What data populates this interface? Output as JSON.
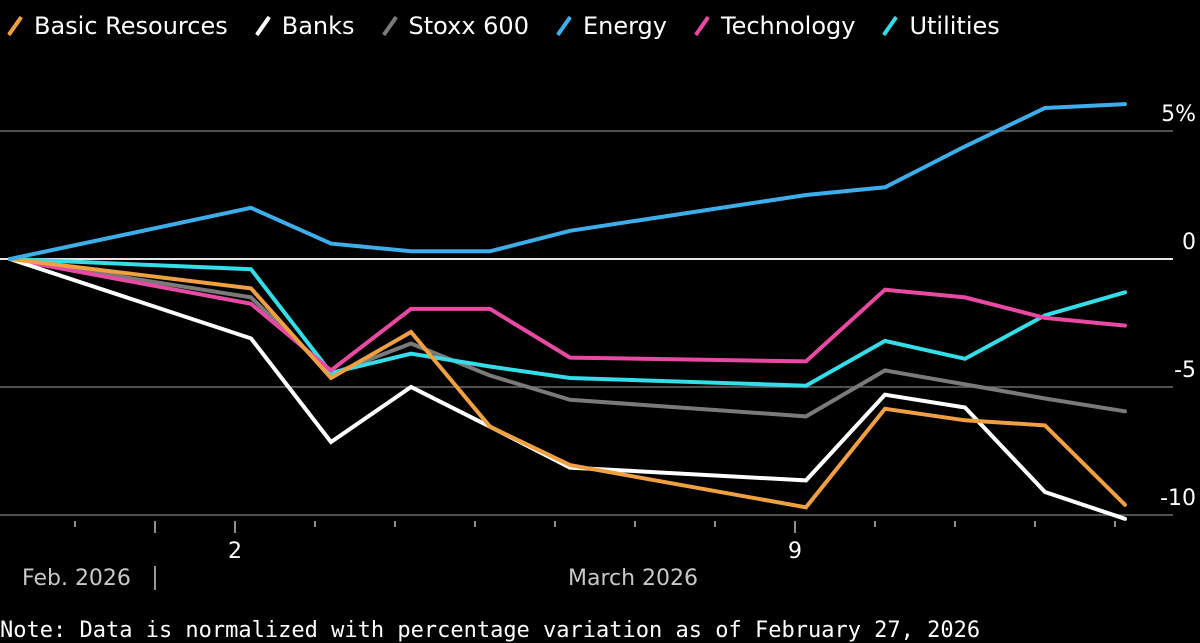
{
  "chart_data": {
    "type": "line",
    "title": "",
    "xlabel": "",
    "ylabel": "",
    "y_unit": "%",
    "ylim": [
      -10.5,
      7.5
    ],
    "yticks": [
      5,
      0,
      -5,
      -10
    ],
    "ytick_labels": [
      "5%",
      "0",
      "-5",
      "-10"
    ],
    "grid": true,
    "legend_position": "top-left",
    "x": [
      "2026-02-27",
      "2026-03-02",
      "2026-03-03",
      "2026-03-04",
      "2026-03-05",
      "2026-03-06",
      "2026-03-09",
      "2026-03-10",
      "2026-03-11",
      "2026-03-12",
      "2026-03-13"
    ],
    "xtick_labels": [
      {
        "label": "2",
        "date": "2026-03-02"
      },
      {
        "label": "9",
        "date": "2026-03-09"
      }
    ],
    "period_labels": [
      "Feb. 2026",
      "March 2026"
    ],
    "series": [
      {
        "name": "Basic Resources",
        "color": "#f0a040",
        "values": [
          0,
          -1.15,
          -4.65,
          -2.85,
          -6.55,
          -8.05,
          -9.7,
          -5.85,
          -6.3,
          -6.5,
          -9.6
        ]
      },
      {
        "name": "Banks",
        "color": "#ffffff",
        "values": [
          0,
          -3.1,
          -7.15,
          -5.0,
          -6.55,
          -8.15,
          -8.65,
          -5.3,
          -5.8,
          -9.1,
          -10.15
        ]
      },
      {
        "name": "Stoxx 600",
        "color": "#7a7a7a",
        "values": [
          0,
          -1.5,
          -4.5,
          -3.3,
          -4.55,
          -5.5,
          -6.15,
          -4.35,
          -4.9,
          -5.45,
          -5.95
        ]
      },
      {
        "name": "Energy",
        "color": "#3daee9",
        "values": [
          0,
          2.0,
          0.6,
          0.3,
          0.3,
          1.1,
          2.5,
          2.8,
          4.4,
          5.9,
          6.05
        ]
      },
      {
        "name": "Technology",
        "color": "#e84aa3",
        "values": [
          0,
          -1.75,
          -4.35,
          -1.95,
          -1.95,
          -3.85,
          -4.0,
          -1.2,
          -1.5,
          -2.3,
          -2.6
        ]
      },
      {
        "name": "Utilities",
        "color": "#34dde8",
        "values": [
          0,
          -0.4,
          -4.45,
          -3.7,
          -4.2,
          -4.65,
          -4.95,
          -3.2,
          -3.9,
          -2.2,
          -1.3
        ]
      }
    ]
  },
  "note": "Note: Data is normalized with percentage variation as of February 27, 2026"
}
